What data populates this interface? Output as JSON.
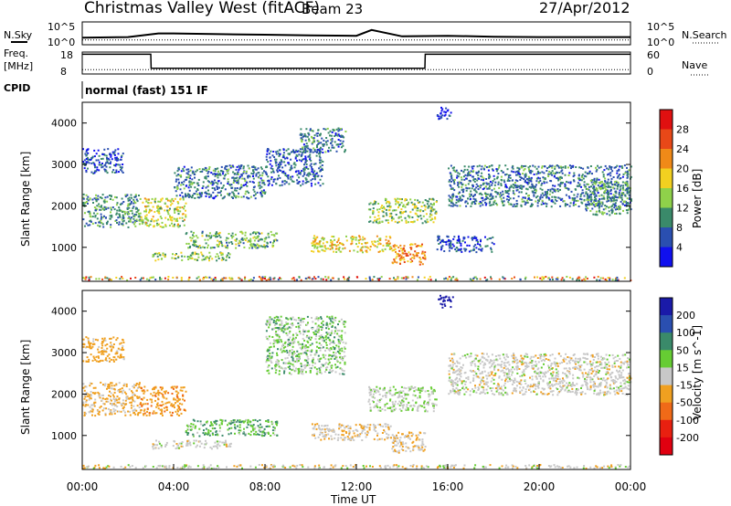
{
  "header": {
    "station": "Christmas Valley West (fitACF)",
    "beam": "Beam 23",
    "date": "27/Apr/2012"
  },
  "top_panels": {
    "nsky_label": "N.Sky",
    "nsky_ticks": [
      "10^5",
      "10^0"
    ],
    "nsearch_label": "N.Search",
    "nsearch_ticks": [
      "10^5",
      "10^0"
    ],
    "freq_label": "Freq.",
    "freq_unit": "[MHz]",
    "freq_ticks": [
      "18",
      "8"
    ],
    "nave_label": "Nave",
    "nave_ticks": [
      "60",
      "0"
    ],
    "cpid_label": "CPID",
    "cpid_text": "normal (fast) 151 IF"
  },
  "chart_data": [
    {
      "type": "line",
      "panel": "noise",
      "y_scale": "log",
      "ylim": [
        1,
        100000
      ],
      "x": [
        "00:00",
        "02:00",
        "03:20",
        "04:00",
        "06:00",
        "08:00",
        "10:00",
        "12:00",
        "12:40",
        "14:00",
        "16:00",
        "18:00",
        "20:00",
        "22:00",
        "24:00"
      ],
      "series": [
        {
          "name": "N.Sky",
          "values": [
            30,
            40,
            300,
            300,
            200,
            150,
            100,
            80,
            2000,
            60,
            80,
            50,
            40,
            40,
            40
          ]
        },
        {
          "name": "N.Search",
          "values": [
            8,
            8,
            8,
            8,
            8,
            8,
            8,
            8,
            8,
            8,
            8,
            8,
            8,
            8,
            8
          ]
        }
      ]
    },
    {
      "type": "line",
      "panel": "frequency",
      "ylim": [
        8,
        18
      ],
      "x": [
        "00:00",
        "03:00",
        "03:01",
        "15:00",
        "15:01",
        "24:00"
      ],
      "series": [
        {
          "name": "Freq.",
          "values": [
            17,
            17,
            10.6,
            10.6,
            17,
            17
          ]
        },
        {
          "name": "Nave",
          "values": [
            10,
            10,
            10,
            10,
            10,
            10
          ]
        }
      ]
    },
    {
      "type": "heatmap",
      "panel": "power",
      "xlabel": "",
      "ylabel": "Slant Range [km]",
      "xlim": [
        "00:00",
        "24:00"
      ],
      "ylim": [
        180,
        4500
      ],
      "y_ticks": [
        1000,
        2000,
        3000,
        4000
      ],
      "colorbar_label": "Power [dB]",
      "colorbar_ticks": [
        4,
        8,
        12,
        16,
        20,
        24,
        28
      ],
      "colorbar_colors": [
        "#1010ee",
        "#2a4fb0",
        "#3a8a6a",
        "#8fd14a",
        "#f2d020",
        "#f08a18",
        "#e84818",
        "#e01010"
      ],
      "echo_bands": [
        {
          "t": [
            0.0,
            2.5
          ],
          "r": [
            1500,
            2300
          ],
          "p": 10
        },
        {
          "t": [
            0.0,
            1.8
          ],
          "r": [
            2800,
            3400
          ],
          "p": 6
        },
        {
          "t": [
            2.5,
            4.5
          ],
          "r": [
            1500,
            2200
          ],
          "p": 16
        },
        {
          "t": [
            3.0,
            6.5
          ],
          "r": [
            700,
            900
          ],
          "p": 14
        },
        {
          "t": [
            4.5,
            8.5
          ],
          "r": [
            1000,
            1400
          ],
          "p": 12
        },
        {
          "t": [
            4.0,
            8.0
          ],
          "r": [
            2200,
            3000
          ],
          "p": 8
        },
        {
          "t": [
            8.0,
            10.5
          ],
          "r": [
            2500,
            3400
          ],
          "p": 7
        },
        {
          "t": [
            9.5,
            11.5
          ],
          "r": [
            3300,
            3900
          ],
          "p": 8
        },
        {
          "t": [
            10.0,
            13.5
          ],
          "r": [
            900,
            1300
          ],
          "p": 18
        },
        {
          "t": [
            12.5,
            15.5
          ],
          "r": [
            1600,
            2200
          ],
          "p": 14
        },
        {
          "t": [
            13.5,
            15.0
          ],
          "r": [
            600,
            1100
          ],
          "p": 22
        },
        {
          "t": [
            15.5,
            18.0
          ],
          "r": [
            900,
            1300
          ],
          "p": 6
        },
        {
          "t": [
            16.0,
            24.0
          ],
          "r": [
            2000,
            3000
          ],
          "p": 8
        },
        {
          "t": [
            22.0,
            24.0
          ],
          "r": [
            1800,
            2600
          ],
          "p": 10
        },
        {
          "t": [
            15.5,
            16.2
          ],
          "r": [
            4100,
            4400
          ],
          "p": 4
        }
      ]
    },
    {
      "type": "heatmap",
      "panel": "velocity",
      "xlabel": "Time UT",
      "ylabel": "Slant Range [km]",
      "xlim": [
        "00:00",
        "24:00"
      ],
      "ylim": [
        180,
        4500
      ],
      "x_ticks": [
        "00:00",
        "04:00",
        "08:00",
        "12:00",
        "16:00",
        "20:00",
        "00:00"
      ],
      "y_ticks": [
        1000,
        2000,
        3000,
        4000
      ],
      "colorbar_label": "Velocity [m s^-1]",
      "colorbar_ticks": [
        200,
        100,
        50,
        15,
        -15,
        -50,
        -100,
        -200
      ],
      "colorbar_colors": [
        "#1a1aa8",
        "#2a4fb0",
        "#3a8a6a",
        "#66cc33",
        "#c8c8c8",
        "#f0a020",
        "#f06a18",
        "#e82010",
        "#e00010"
      ],
      "echo_bands": [
        {
          "t": [
            0.0,
            2.5
          ],
          "r": [
            1500,
            2300
          ],
          "v": -20
        },
        {
          "t": [
            0.0,
            1.8
          ],
          "r": [
            2800,
            3400
          ],
          "v": -30
        },
        {
          "t": [
            2.5,
            4.5
          ],
          "r": [
            1500,
            2200
          ],
          "v": -40
        },
        {
          "t": [
            3.0,
            6.5
          ],
          "r": [
            700,
            900
          ],
          "v": 0
        },
        {
          "t": [
            4.5,
            8.5
          ],
          "r": [
            1000,
            1400
          ],
          "v": 30
        },
        {
          "t": [
            8.0,
            11.5
          ],
          "r": [
            2500,
            3900
          ],
          "v": 20
        },
        {
          "t": [
            10.0,
            13.5
          ],
          "r": [
            900,
            1300
          ],
          "v": -10
        },
        {
          "t": [
            12.5,
            15.5
          ],
          "r": [
            1600,
            2200
          ],
          "v": 10
        },
        {
          "t": [
            13.5,
            15.0
          ],
          "r": [
            600,
            1100
          ],
          "v": -10
        },
        {
          "t": [
            16.0,
            24.0
          ],
          "r": [
            2000,
            3000
          ],
          "v": 0
        },
        {
          "t": [
            15.5,
            16.2
          ],
          "r": [
            4100,
            4400
          ],
          "v": 220
        }
      ]
    }
  ]
}
